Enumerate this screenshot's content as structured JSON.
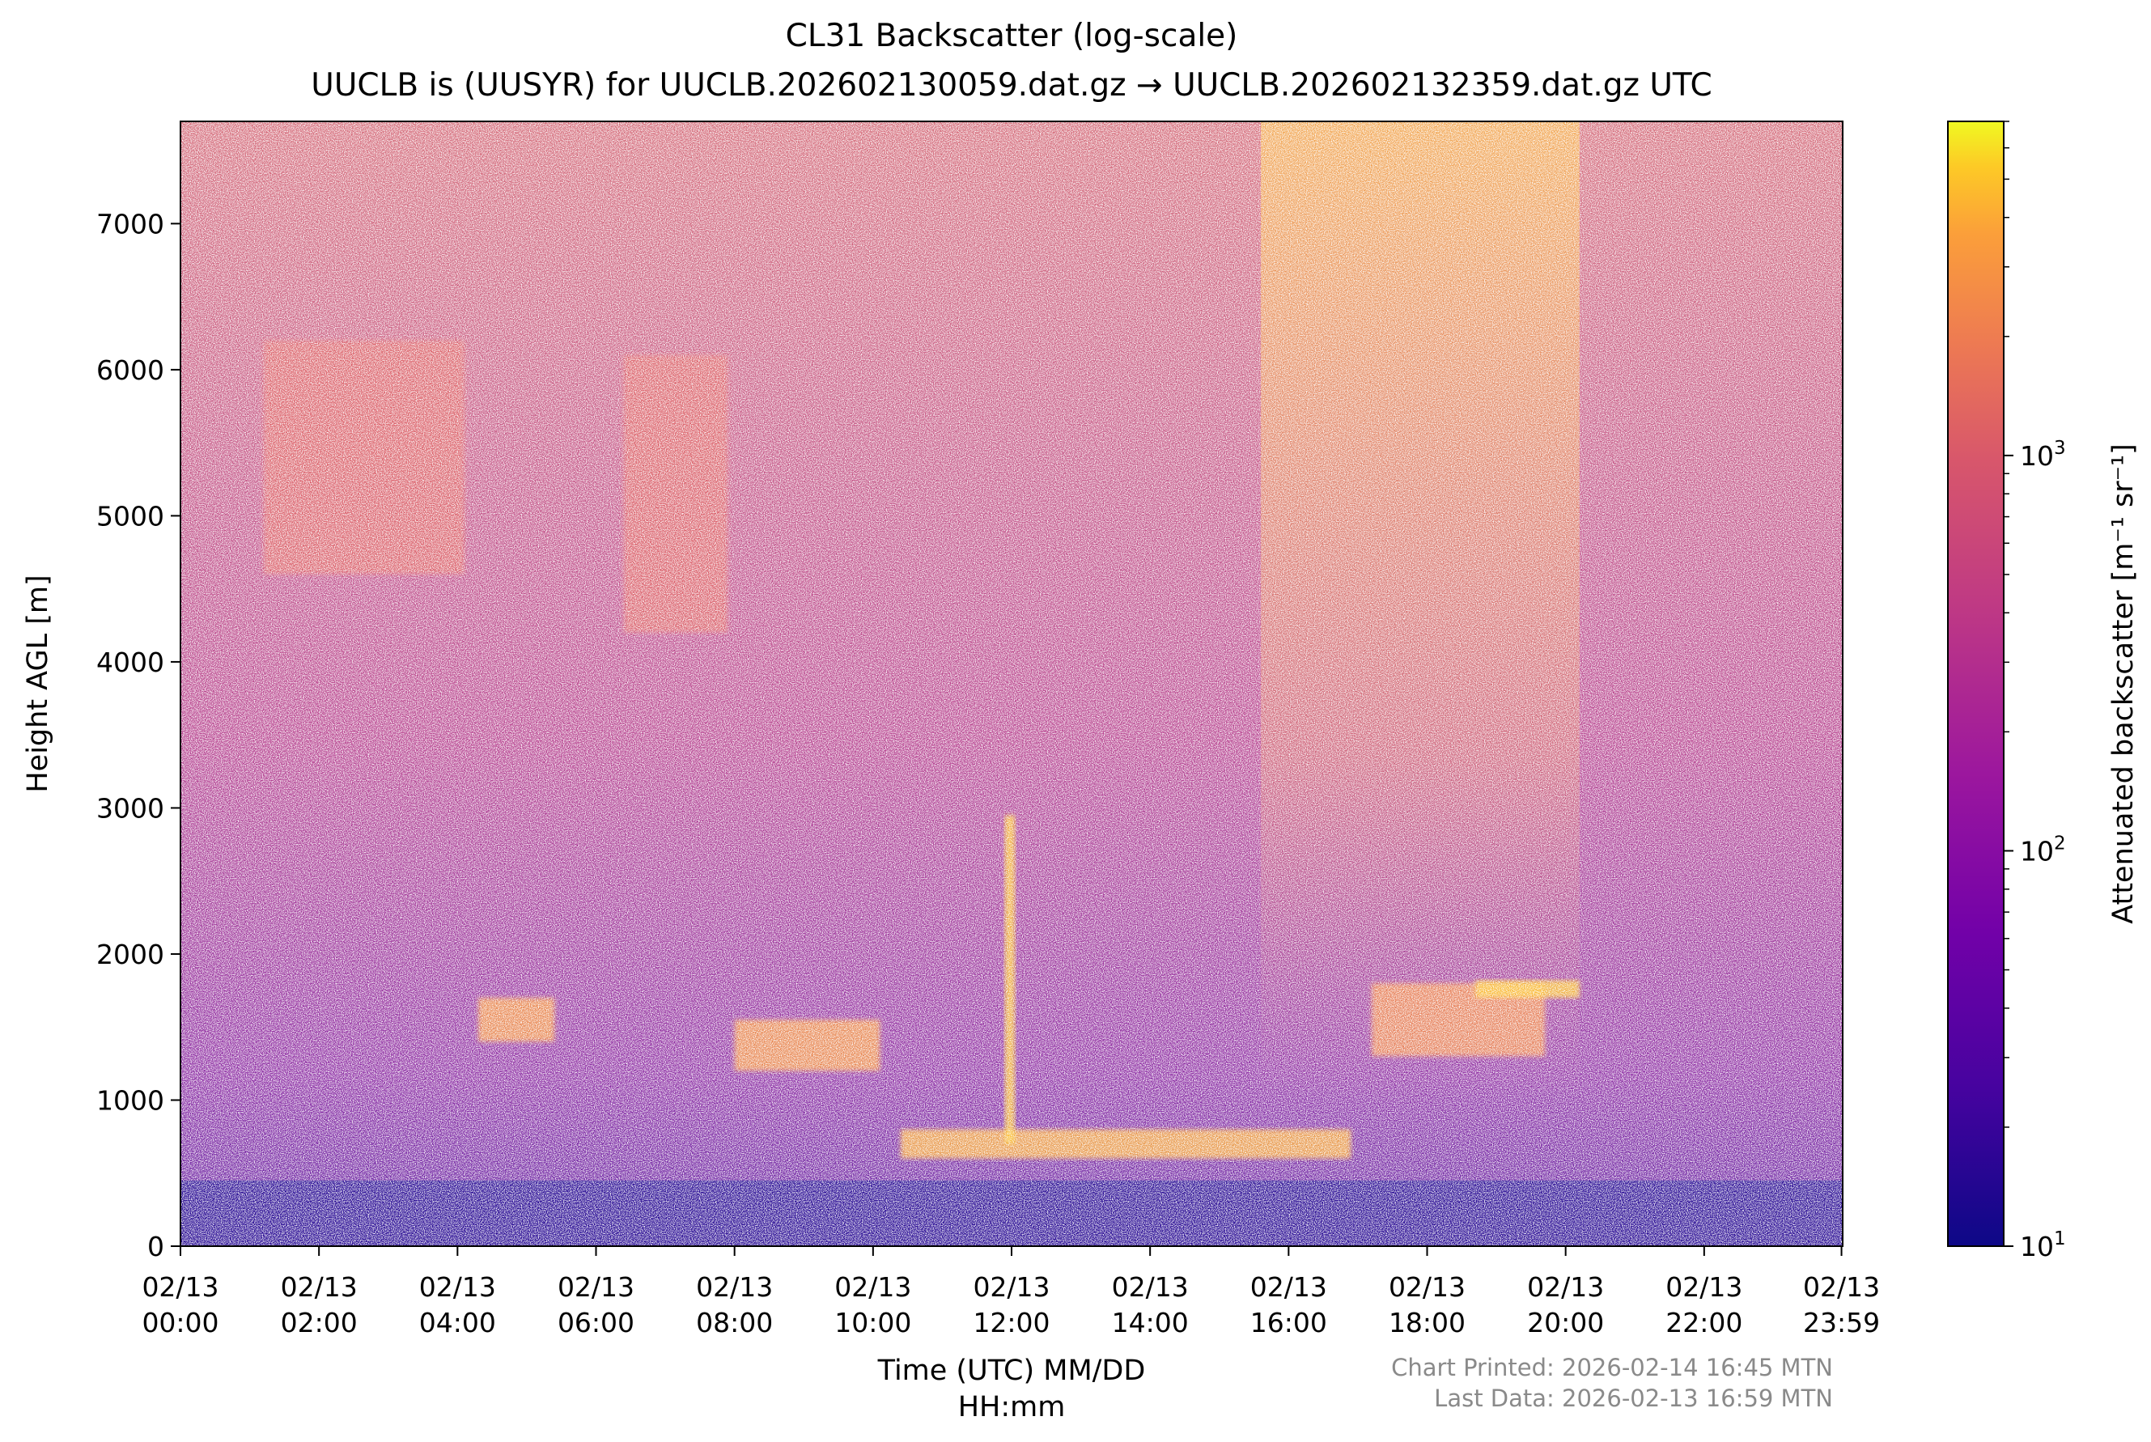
{
  "chart_data": {
    "type": "heatmap",
    "title": "CL31 Backscatter (log-scale)",
    "subtitle": "UUCLB is (UUSYR) for UUCLB.202602130059.dat.gz → UUCLB.202602132359.dat.gz UTC",
    "xlabel_line1": "Time (UTC) MM/DD",
    "xlabel_line2": "HH:mm",
    "ylabel": "Height AGL [m]",
    "colorbar_label": "Attenuated backscatter [m⁻¹ sr⁻¹]",
    "colormap": "plasma",
    "x_range_hours": [
      0,
      24
    ],
    "ylim": [
      0,
      7700
    ],
    "color_range": [
      10,
      7000
    ],
    "x_ticks": [
      {
        "h": 0,
        "date": "02/13",
        "time": "00:00"
      },
      {
        "h": 2,
        "date": "02/13",
        "time": "02:00"
      },
      {
        "h": 4,
        "date": "02/13",
        "time": "04:00"
      },
      {
        "h": 6,
        "date": "02/13",
        "time": "06:00"
      },
      {
        "h": 8,
        "date": "02/13",
        "time": "08:00"
      },
      {
        "h": 10,
        "date": "02/13",
        "time": "10:00"
      },
      {
        "h": 12,
        "date": "02/13",
        "time": "12:00"
      },
      {
        "h": 14,
        "date": "02/13",
        "time": "14:00"
      },
      {
        "h": 16,
        "date": "02/13",
        "time": "16:00"
      },
      {
        "h": 18,
        "date": "02/13",
        "time": "18:00"
      },
      {
        "h": 20,
        "date": "02/13",
        "time": "20:00"
      },
      {
        "h": 22,
        "date": "02/13",
        "time": "22:00"
      },
      {
        "h": 23.983,
        "date": "02/13",
        "time": "23:59"
      }
    ],
    "y_ticks": [
      0,
      1000,
      2000,
      3000,
      4000,
      5000,
      6000,
      7000
    ],
    "colorbar_ticks": [
      {
        "value": 10,
        "base": "10",
        "exp": "1"
      },
      {
        "value": 100,
        "base": "10",
        "exp": "2"
      },
      {
        "value": 1000,
        "base": "10",
        "exp": "3"
      }
    ],
    "layers": [
      {
        "t0": 0,
        "t1": 24,
        "h0": 0,
        "h1": 450,
        "value": 14
      },
      {
        "t0": 10.4,
        "t1": 16.9,
        "h0": 600,
        "h1": 800,
        "value": 4000
      },
      {
        "t0": 17.2,
        "t1": 19.7,
        "h0": 1300,
        "h1": 1800,
        "value": 2500
      },
      {
        "t0": 18.7,
        "t1": 20.2,
        "h0": 1700,
        "h1": 1820,
        "value": 5000
      },
      {
        "t0": 11.9,
        "t1": 12.05,
        "h0": 700,
        "h1": 2950,
        "value": 5000
      },
      {
        "t0": 8.0,
        "t1": 10.1,
        "h0": 1200,
        "h1": 1550,
        "value": 3000
      },
      {
        "t0": 4.3,
        "t1": 5.4,
        "h0": 1400,
        "h1": 1700,
        "value": 3000
      },
      {
        "t0": 1.2,
        "t1": 4.1,
        "h0": 4600,
        "h1": 6200,
        "value": 1200
      },
      {
        "t0": 6.4,
        "t1": 7.9,
        "h0": 4200,
        "h1": 6100,
        "value": 1200
      }
    ]
  },
  "footer": {
    "printed": "Chart Printed: 2026-02-14 16:45 MTN",
    "last_data": "Last Data: 2026-02-13 16:59 MTN"
  }
}
